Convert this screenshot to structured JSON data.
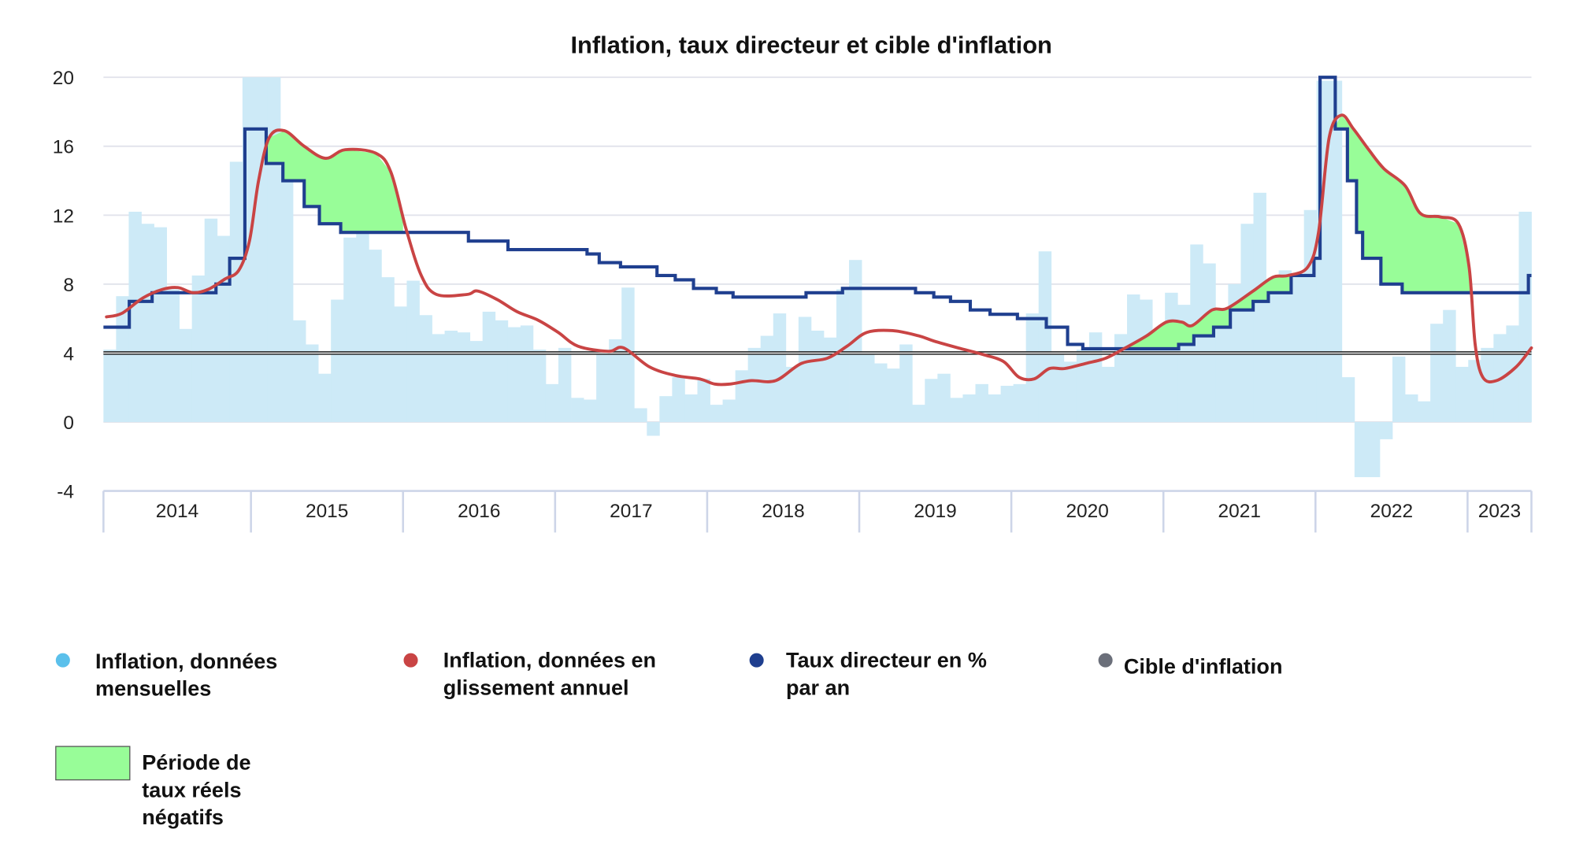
{
  "chart_data": {
    "type": "bar+line",
    "title": "Inflation, taux directeur et cible d'inflation",
    "xlabel": "",
    "ylabel": "",
    "ylim": [
      -4,
      20
    ],
    "yticks": [
      "20",
      "16",
      "12",
      "8",
      "4",
      "0",
      "-4"
    ],
    "ytick_values": [
      20,
      16,
      12,
      8,
      4,
      0,
      -4
    ],
    "x_range": [
      2014.03,
      2023.42
    ],
    "year_labels": [
      "2014",
      "2015",
      "2016",
      "2017",
      "2018",
      "2019",
      "2020",
      "2021",
      "2022",
      "2023"
    ],
    "year_starts": [
      2014.03,
      2015,
      2016,
      2017,
      2018,
      2019,
      2020,
      2021,
      2022,
      2023,
      2023.42
    ],
    "grid": true,
    "legend_position": "bottom",
    "colors": {
      "monthly": "#cdeaf7",
      "monthly_dot": "#5bc0eb",
      "yoy": "#c94444",
      "rate": "#1f3f8f",
      "target": "#6b6f7a",
      "negative_real": "#98fd98",
      "grid": "#e2e4ec",
      "axis": "#cdd5e8"
    },
    "series": [
      {
        "name": "Inflation, données mensuelles",
        "type": "bar",
        "start": 2014.03,
        "values": [
          4.2,
          7.3,
          12.2,
          11.5,
          11.3,
          7.7,
          5.4,
          8.5,
          11.8,
          10.8,
          15.1,
          20,
          20,
          20,
          14.8,
          5.9,
          4.5,
          2.8,
          7.1,
          10.7,
          11.0,
          10.0,
          8.4,
          6.7,
          8.2,
          6.2,
          5.1,
          5.3,
          5.2,
          4.7,
          6.4,
          5.9,
          5.5,
          5.6,
          4.2,
          2.2,
          4.3,
          1.4,
          1.3,
          4.2,
          4.8,
          7.8,
          0.8,
          -0.8,
          1.5,
          2.6,
          1.6,
          2.5,
          1.0,
          1.3,
          3.0,
          4.3,
          5.0,
          6.3,
          3.2,
          6.1,
          5.3,
          4.9,
          7.7,
          9.4,
          3.9,
          3.4,
          3.1,
          4.5,
          1.0,
          2.5,
          2.8,
          1.4,
          1.6,
          2.2,
          1.6,
          2.1,
          2.2,
          6.3,
          9.9,
          3.9,
          3.5,
          4.2,
          5.2,
          3.2,
          5.1,
          7.4,
          7.1,
          4.8,
          7.5,
          6.8,
          10.3,
          9.2,
          6.5,
          8.0,
          11.5,
          13.3,
          8.2,
          8.8,
          8.6,
          12.3,
          19.8,
          19.8,
          2.6,
          -3.2,
          -3.2,
          -1.0,
          3.8,
          1.6,
          1.2,
          5.7,
          6.5,
          3.2,
          3.6,
          4.3,
          5.1,
          5.6,
          12.2
        ]
      },
      {
        "name": "Inflation, données en glissement annuel",
        "type": "line",
        "points": [
          [
            2014.05,
            6.1
          ],
          [
            2014.15,
            6.3
          ],
          [
            2014.29,
            7.2
          ],
          [
            2014.42,
            7.7
          ],
          [
            2014.52,
            7.8
          ],
          [
            2014.62,
            7.5
          ],
          [
            2014.72,
            7.7
          ],
          [
            2014.83,
            8.3
          ],
          [
            2014.92,
            8.8
          ],
          [
            2014.99,
            10.5
          ],
          [
            2015.05,
            14
          ],
          [
            2015.12,
            16.5
          ],
          [
            2015.22,
            16.9
          ],
          [
            2015.35,
            16
          ],
          [
            2015.49,
            15.3
          ],
          [
            2015.62,
            15.8
          ],
          [
            2015.82,
            15.6
          ],
          [
            2015.92,
            14.5
          ],
          [
            2016.02,
            11.2
          ],
          [
            2016.12,
            8.5
          ],
          [
            2016.22,
            7.4
          ],
          [
            2016.42,
            7.4
          ],
          [
            2016.49,
            7.6
          ],
          [
            2016.62,
            7.1
          ],
          [
            2016.75,
            6.4
          ],
          [
            2016.89,
            5.9
          ],
          [
            2017.02,
            5.2
          ],
          [
            2017.15,
            4.4
          ],
          [
            2017.35,
            4.1
          ],
          [
            2017.45,
            4.3
          ],
          [
            2017.62,
            3.2
          ],
          [
            2017.79,
            2.7
          ],
          [
            2017.95,
            2.5
          ],
          [
            2018.05,
            2.2
          ],
          [
            2018.15,
            2.2
          ],
          [
            2018.29,
            2.4
          ],
          [
            2018.45,
            2.4
          ],
          [
            2018.62,
            3.4
          ],
          [
            2018.79,
            3.7
          ],
          [
            2018.92,
            4.4
          ],
          [
            2019.05,
            5.2
          ],
          [
            2019.22,
            5.3
          ],
          [
            2019.39,
            5.0
          ],
          [
            2019.49,
            4.7
          ],
          [
            2019.65,
            4.3
          ],
          [
            2019.82,
            3.9
          ],
          [
            2019.95,
            3.5
          ],
          [
            2020.05,
            2.6
          ],
          [
            2020.15,
            2.5
          ],
          [
            2020.25,
            3.1
          ],
          [
            2020.35,
            3.1
          ],
          [
            2020.49,
            3.4
          ],
          [
            2020.62,
            3.7
          ],
          [
            2020.75,
            4.3
          ],
          [
            2020.89,
            5.0
          ],
          [
            2021.02,
            5.8
          ],
          [
            2021.12,
            5.8
          ],
          [
            2021.19,
            5.6
          ],
          [
            2021.32,
            6.5
          ],
          [
            2021.42,
            6.6
          ],
          [
            2021.59,
            7.6
          ],
          [
            2021.72,
            8.4
          ],
          [
            2021.82,
            8.5
          ],
          [
            2021.95,
            9.0
          ],
          [
            2022.02,
            11
          ],
          [
            2022.09,
            16.5
          ],
          [
            2022.17,
            17.8
          ],
          [
            2022.25,
            17.0
          ],
          [
            2022.35,
            15.8
          ],
          [
            2022.45,
            14.7
          ],
          [
            2022.59,
            13.7
          ],
          [
            2022.69,
            12.1
          ],
          [
            2022.82,
            11.9
          ],
          [
            2022.94,
            11.5
          ],
          [
            2023.01,
            9
          ],
          [
            2023.05,
            4.5
          ],
          [
            2023.1,
            2.6
          ],
          [
            2023.19,
            2.4
          ],
          [
            2023.32,
            3.2
          ],
          [
            2023.42,
            4.3
          ]
        ]
      },
      {
        "name": "Taux directeur en % par an",
        "type": "step",
        "steps": [
          [
            2014.03,
            5.5
          ],
          [
            2014.2,
            7.0
          ],
          [
            2014.35,
            7.5
          ],
          [
            2014.77,
            8.0
          ],
          [
            2014.86,
            9.5
          ],
          [
            2014.96,
            17
          ],
          [
            2015.1,
            15
          ],
          [
            2015.21,
            14
          ],
          [
            2015.35,
            12.5
          ],
          [
            2015.45,
            11.5
          ],
          [
            2015.59,
            11
          ],
          [
            2016.43,
            10.5
          ],
          [
            2016.69,
            10
          ],
          [
            2017.21,
            9.75
          ],
          [
            2017.29,
            9.25
          ],
          [
            2017.43,
            9.0
          ],
          [
            2017.67,
            8.5
          ],
          [
            2017.79,
            8.25
          ],
          [
            2017.91,
            7.75
          ],
          [
            2018.06,
            7.5
          ],
          [
            2018.17,
            7.25
          ],
          [
            2018.65,
            7.5
          ],
          [
            2018.89,
            7.75
          ],
          [
            2019.37,
            7.5
          ],
          [
            2019.49,
            7.25
          ],
          [
            2019.6,
            7.0
          ],
          [
            2019.73,
            6.5
          ],
          [
            2019.86,
            6.25
          ],
          [
            2020.04,
            6.0
          ],
          [
            2020.23,
            5.5
          ],
          [
            2020.37,
            4.5
          ],
          [
            2020.47,
            4.25
          ],
          [
            2021.1,
            4.5
          ],
          [
            2021.2,
            5.0
          ],
          [
            2021.33,
            5.5
          ],
          [
            2021.44,
            6.5
          ],
          [
            2021.59,
            7.0
          ],
          [
            2021.69,
            7.5
          ],
          [
            2021.84,
            8.5
          ],
          [
            2021.99,
            9.5
          ],
          [
            2022.03,
            20
          ],
          [
            2022.13,
            17
          ],
          [
            2022.21,
            14
          ],
          [
            2022.27,
            11
          ],
          [
            2022.31,
            9.5
          ],
          [
            2022.43,
            8.0
          ],
          [
            2022.57,
            7.5
          ],
          [
            2023.4,
            8.5
          ]
        ],
        "end": 2023.42
      },
      {
        "name": "Cible d'inflation",
        "type": "hline",
        "value": 4
      }
    ],
    "negative_real_rate_periods": [
      [
        2015.08,
        2016.0
      ],
      [
        2020.72,
        2021.85
      ],
      [
        2022.12,
        2023.03
      ]
    ]
  },
  "legend": [
    {
      "key": "monthly",
      "lines": [
        "Inflation, données",
        "mensuelles"
      ]
    },
    {
      "key": "yoy",
      "lines": [
        "Inflation, données en",
        "glissement annuel"
      ]
    },
    {
      "key": "rate",
      "lines": [
        "Taux directeur en %",
        "par an"
      ]
    },
    {
      "key": "target",
      "lines": [
        "Cible d'inflation"
      ]
    },
    {
      "key": "negative_real",
      "lines": [
        "Période de",
        "taux réels",
        "négatifs"
      ]
    }
  ]
}
